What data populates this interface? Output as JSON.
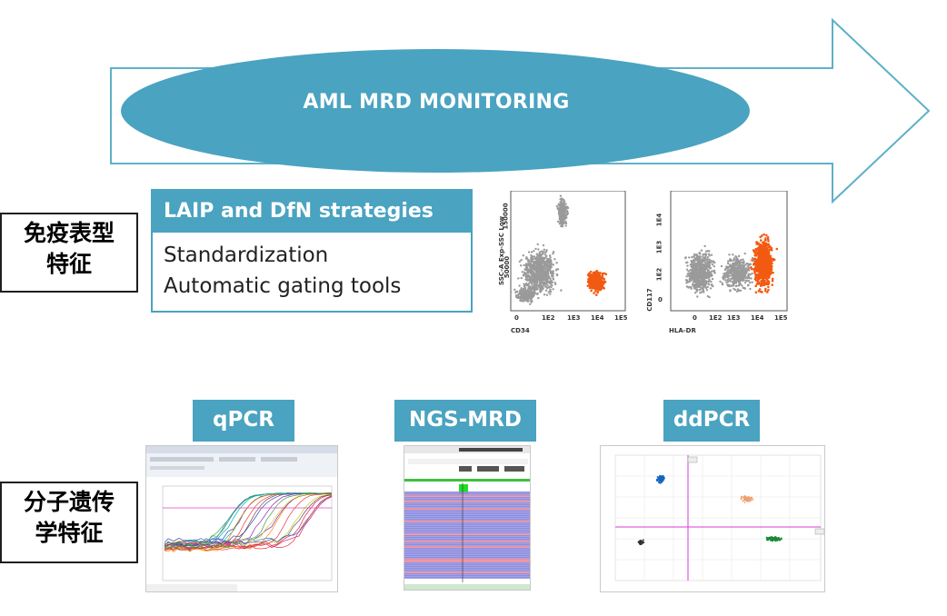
{
  "banner": {
    "title": "AML MRD MONITORING"
  },
  "immuno": {
    "section_label_line1": "免疫表型",
    "section_label_line2": "特征",
    "box_title": "LAIP and DfN strategies",
    "box_lines": [
      "Standardization",
      "Automatic gating tools"
    ]
  },
  "flow_plot_1": {
    "y_label": "SSC-A Exp-SSC Low",
    "x_label": "CD34",
    "y_ticks": [
      "150000",
      "50000"
    ],
    "x_ticks": [
      "0",
      "1E2",
      "1E3",
      "1E4",
      "1E5"
    ]
  },
  "flow_plot_2": {
    "y_label": "CD117",
    "x_label": "HLA-DR",
    "y_ticks": [
      "1E4",
      "1E3",
      "1E2",
      "0"
    ],
    "x_ticks": [
      "0",
      "1E2",
      "1E3",
      "1E4",
      "1E5"
    ]
  },
  "molecular": {
    "section_label_line1": "分子遗传",
    "section_label_line2": "学特征",
    "methods": [
      "qPCR",
      "NGS-MRD",
      "ddPCR"
    ]
  },
  "colors": {
    "accent_blue": "#4aa3c0",
    "arrow_outline": "#5fb0c8",
    "ellipse_fill": "#4aa3c0",
    "highlight_orange": "#f25a12",
    "population_gray": "#9a9a9a"
  }
}
